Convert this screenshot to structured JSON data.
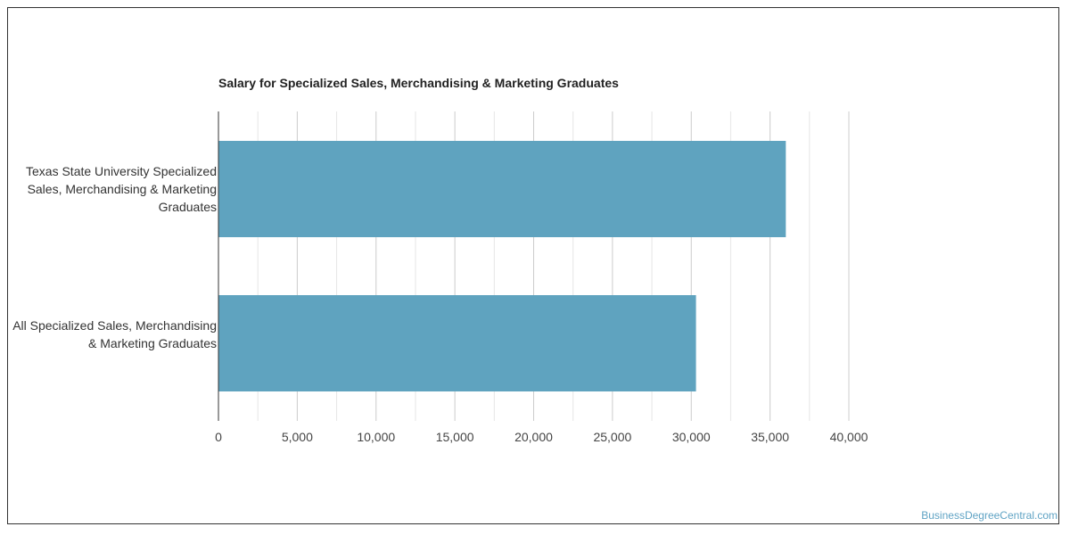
{
  "chart_data": {
    "type": "bar",
    "orientation": "horizontal",
    "title": "Salary for Specialized Sales, Merchandising & Marketing Graduates",
    "categories": [
      "Texas State University Specialized Sales, Merchandising & Marketing Graduates",
      "All Specialized Sales, Merchandising & Marketing Graduates"
    ],
    "values": [
      36000,
      30300
    ],
    "xlim": [
      0,
      40000
    ],
    "xticks": [
      "0",
      "5,000",
      "10,000",
      "15,000",
      "20,000",
      "25,000",
      "30,000",
      "35,000",
      "40,000"
    ],
    "xlabel": "",
    "ylabel": "",
    "grid": true,
    "bar_color": "#5fa3bf"
  },
  "watermark": "BusinessDegreeCentral.com"
}
